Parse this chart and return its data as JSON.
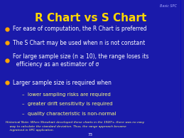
{
  "title": "R Chart vs S Chart",
  "title_color": "#FFD700",
  "background_color": "#1a1aaa",
  "bullet_color": "#FFA500",
  "text_color": "#FFFFFF",
  "sub_text_color": "#FFFF80",
  "historical_color": "#FFFF80",
  "corner_label": "Basic SPC",
  "page_number": "73",
  "bullets": [
    "For ease of computation, the R Chart is preferred",
    "The S Chart may be used when n is not constant",
    "For large sample size (n ≥ 10), the range loses its\n  efficiency as an estimator of σ",
    "Larger sample size is required when"
  ],
  "sub_bullets": [
    "–  lower sampling risks are required",
    "–  greater drift sensitivity is required",
    "–  quality characteristic is non-normal"
  ],
  "historical_note": "Historical Note: When Shewhart developed these charts in the 1920's, there was no easy\n    way to calculate the standard deviation. Thus, the range approach became\n    ingrained in SPC application."
}
